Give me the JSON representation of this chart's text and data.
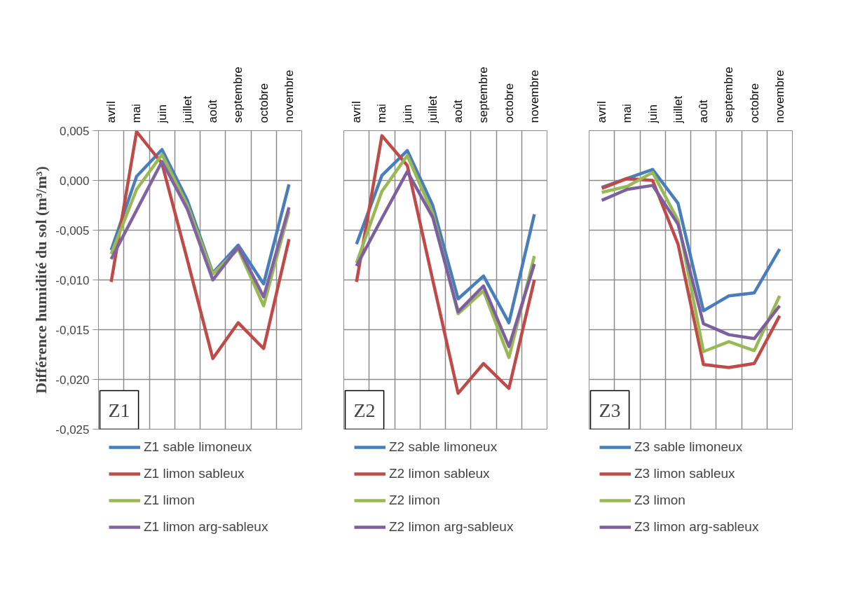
{
  "chart_data": [
    {
      "type": "line",
      "ylabel": "Différence humidité du sol (m³/m³)",
      "categories": [
        "avril",
        "mai",
        "juin",
        "juillet",
        "août",
        "septembre",
        "octobre",
        "novembre"
      ],
      "series": [
        {
          "name": "Z1 sable limoneux",
          "color": "#4a7ebb",
          "values": [
            -0.007,
            0.0004,
            0.0031,
            -0.002,
            -0.0093,
            -0.0065,
            -0.0104,
            -0.0004
          ]
        },
        {
          "name": "Z1 limon sableux",
          "color": "#be4b48",
          "values": [
            -0.0102,
            0.0049,
            0.0017,
            -0.008,
            -0.0179,
            -0.0143,
            -0.0169,
            -0.0059
          ]
        },
        {
          "name": "Z1 limon",
          "color": "#98b954",
          "values": [
            -0.0074,
            -0.0009,
            0.0026,
            -0.0025,
            -0.0094,
            -0.0069,
            -0.0126,
            -0.0031
          ]
        },
        {
          "name": "Z1 limon arg-sableux",
          "color": "#8064a2",
          "values": [
            -0.0079,
            -0.003,
            0.0019,
            -0.0029,
            -0.01,
            -0.0067,
            -0.0117,
            -0.0027
          ]
        }
      ],
      "ylim": [
        -0.025,
        0.005
      ],
      "yticks": [
        {
          "value": -0.025,
          "label": "-0,025"
        },
        {
          "value": -0.02,
          "label": "-0,020"
        },
        {
          "value": -0.015,
          "label": "-0,015"
        },
        {
          "value": -0.01,
          "label": "-0,010"
        },
        {
          "value": -0.005,
          "label": "-0,005"
        },
        {
          "value": 0,
          "label": "0,000"
        },
        {
          "value": 0.005,
          "label": "0,005"
        }
      ],
      "annotations": [
        "Z1"
      ],
      "grid": true,
      "legend": "bottom"
    },
    {
      "type": "line",
      "categories": [
        "avril",
        "mai",
        "juin",
        "juillet",
        "août",
        "septembre",
        "octobre",
        "novembre"
      ],
      "series": [
        {
          "name": "Z2 sable limoneux",
          "color": "#4a7ebb",
          "values": [
            -0.0064,
            0.0005,
            0.003,
            -0.0025,
            -0.0119,
            -0.0096,
            -0.0143,
            -0.0034
          ]
        },
        {
          "name": "Z2 limon sableux",
          "color": "#be4b48",
          "values": [
            -0.0102,
            0.0045,
            0.0015,
            -0.01,
            -0.0214,
            -0.0184,
            -0.0209,
            -0.01
          ]
        },
        {
          "name": "Z2 limon",
          "color": "#98b954",
          "values": [
            -0.0083,
            -0.0011,
            0.0025,
            -0.0033,
            -0.0134,
            -0.0111,
            -0.0178,
            -0.0076
          ]
        },
        {
          "name": "Z2 limon arg-sableux",
          "color": "#7d5f9e",
          "values": [
            -0.0086,
            -0.0038,
            0.0009,
            -0.0037,
            -0.0132,
            -0.0106,
            -0.0167,
            -0.0084
          ]
        }
      ],
      "ylim": [
        -0.025,
        0.005
      ],
      "yticks": [
        {
          "value": -0.025,
          "label": null
        },
        {
          "value": -0.02,
          "label": null
        },
        {
          "value": -0.015,
          "label": null
        },
        {
          "value": -0.01,
          "label": null
        },
        {
          "value": -0.005,
          "label": null
        },
        {
          "value": 0,
          "label": null
        },
        {
          "value": 0.005,
          "label": null
        }
      ],
      "annotations": [
        "Z2"
      ],
      "grid": true,
      "legend": "bottom",
      "tick_labels": "x"
    },
    {
      "type": "line",
      "categories": [
        "avril",
        "mai",
        "juin",
        "juillet",
        "août",
        "septembre",
        "octobre",
        "novembre"
      ],
      "series": [
        {
          "name": "Z3 sable limoneux",
          "color": "#4a7ebb",
          "values": [
            -0.0007,
            0.0002,
            0.0011,
            -0.0023,
            -0.0131,
            -0.0116,
            -0.0113,
            -0.0069
          ]
        },
        {
          "name": "Z3 limon sableux",
          "color": "#be4b48",
          "values": [
            -0.0008,
            0.0002,
            0.0,
            -0.0064,
            -0.0185,
            -0.0188,
            -0.0184,
            -0.0136
          ]
        },
        {
          "name": "Z3 limon",
          "color": "#98b954",
          "values": [
            -0.0012,
            -0.0006,
            0.0008,
            -0.004,
            -0.0172,
            -0.0162,
            -0.0171,
            -0.0116
          ]
        },
        {
          "name": "Z3 limon arg-sableux",
          "color": "#7d5f9e",
          "values": [
            -0.002,
            -0.0009,
            -0.0005,
            -0.0044,
            -0.0144,
            -0.0155,
            -0.0159,
            -0.0126
          ]
        }
      ],
      "ylim": [
        -0.025,
        0.005
      ],
      "yticks": [
        {
          "value": -0.025,
          "label": null
        },
        {
          "value": -0.02,
          "label": null
        },
        {
          "value": -0.015,
          "label": null
        },
        {
          "value": -0.01,
          "label": null
        },
        {
          "value": -0.005,
          "label": null
        },
        {
          "value": 0,
          "label": null
        },
        {
          "value": 0.005,
          "label": null
        }
      ],
      "annotations": [
        "Z3"
      ],
      "grid": true,
      "legend": "bottom",
      "tick_labels": "x"
    }
  ]
}
